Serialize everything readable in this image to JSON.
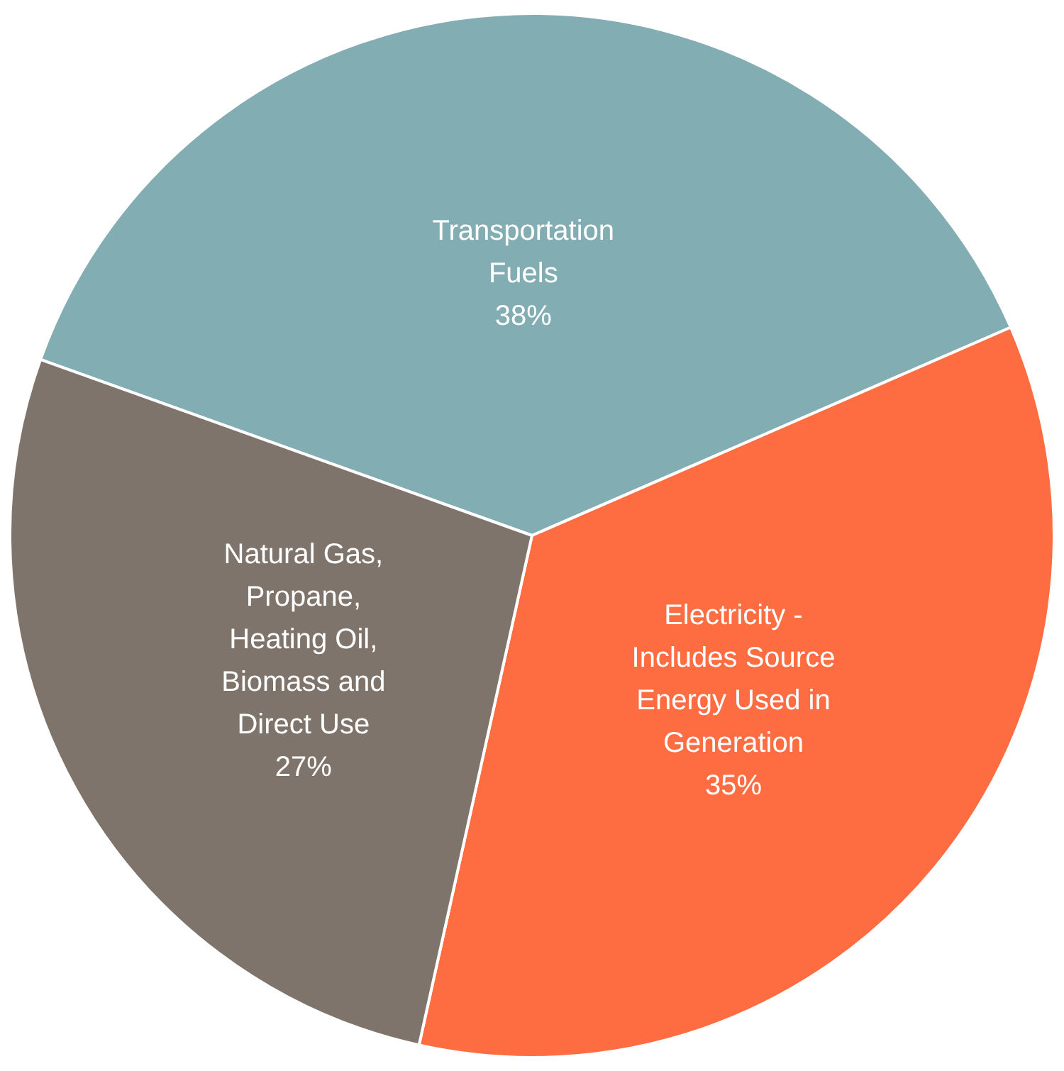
{
  "chart_data": {
    "type": "pie",
    "categories": [
      "Transportation Fuels",
      "Electricity - Includes Source Energy Used in Generation",
      "Natural Gas, Propane, Heating Oil, Biomass and Direct Use"
    ],
    "values": [
      38,
      35,
      27
    ],
    "colors": [
      "#82adb2",
      "#fe6d41",
      "#7f746b"
    ],
    "value_labels": [
      "38%",
      "35%",
      "27%"
    ],
    "legend": false
  }
}
